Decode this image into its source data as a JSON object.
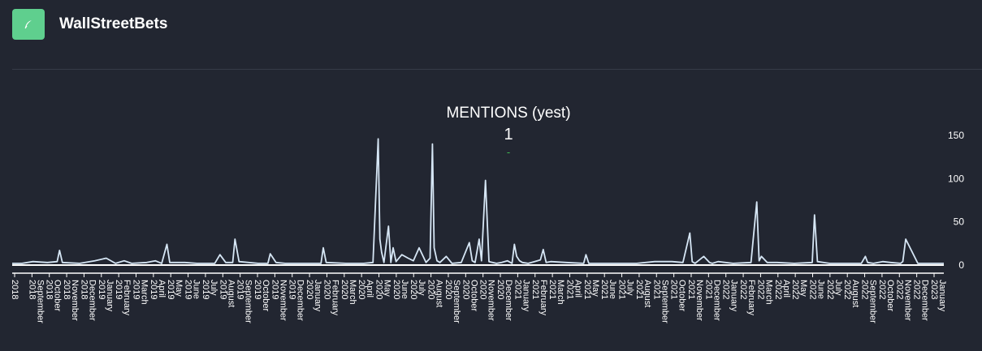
{
  "header": {
    "title": "WallStreetBets",
    "logo_icon": "feather-icon"
  },
  "indicator": {
    "title": "MENTIONS (yest)",
    "value": "1",
    "delta": "-"
  },
  "colors": {
    "background": "#222631",
    "line": "#d6e6f5",
    "logo_bg": "#5fcf8e",
    "delta": "#3fb950"
  },
  "chart_data": {
    "type": "line",
    "ylim": [
      0,
      160
    ],
    "y_ticks": [
      0,
      50,
      100,
      150
    ],
    "x_range": [
      "2018-08-15",
      "2023-01-15"
    ],
    "x_ticks": [
      "2018",
      "2018 September",
      "2018 October",
      "2018 November",
      "2018 December",
      "2019 January",
      "2019 February",
      "2019 March",
      "2019 April",
      "2019 May",
      "2019 June",
      "2019 July",
      "2019 August",
      "2019 September",
      "2019 October",
      "2019 November",
      "2019 December",
      "2020 January",
      "2020 February",
      "2020 March",
      "2020 April",
      "2020 May",
      "2020 June",
      "2020 July",
      "2020 August",
      "2020 September",
      "2020 October",
      "2020 November",
      "2020 December",
      "2021 January",
      "2021 February",
      "2021 March",
      "2021 April",
      "2021 May",
      "2021 June",
      "2021 July",
      "2021 August",
      "2021 September",
      "2021 October",
      "2021 November",
      "2021 December",
      "2022 January",
      "2022 February",
      "2022 March",
      "2022 April",
      "2022 May",
      "2022 June",
      "2022 July",
      "2022 August",
      "2022 September",
      "2022 October",
      "2022 November",
      "2022 December",
      "2023 January"
    ],
    "series": [
      {
        "x": [
          "2018-08-15",
          "2018-09-01",
          "2018-09-20",
          "2018-10-15",
          "2018-11-01",
          "2018-11-05",
          "2018-11-10",
          "2018-12-10",
          "2019-01-05",
          "2019-01-25",
          "2019-02-10",
          "2019-02-25",
          "2019-03-10",
          "2019-04-05",
          "2019-04-20",
          "2019-05-01",
          "2019-05-10",
          "2019-05-15",
          "2019-06-10",
          "2019-07-01",
          "2019-08-01",
          "2019-08-10",
          "2019-08-20",
          "2019-09-01",
          "2019-09-05",
          "2019-09-12",
          "2019-10-15",
          "2019-11-01",
          "2019-11-05",
          "2019-11-15",
          "2019-12-01",
          "2020-01-01",
          "2020-02-01",
          "2020-02-05",
          "2020-02-10",
          "2020-03-15",
          "2020-04-15",
          "2020-05-01",
          "2020-05-10",
          "2020-05-13",
          "2020-05-16",
          "2020-05-20",
          "2020-05-28",
          "2020-06-01",
          "2020-06-05",
          "2020-06-10",
          "2020-06-20",
          "2020-07-01",
          "2020-07-10",
          "2020-07-20",
          "2020-08-01",
          "2020-08-08",
          "2020-08-12",
          "2020-08-15",
          "2020-08-20",
          "2020-08-25",
          "2020-09-05",
          "2020-09-15",
          "2020-10-01",
          "2020-10-15",
          "2020-10-20",
          "2020-10-25",
          "2020-11-01",
          "2020-11-05",
          "2020-11-12",
          "2020-11-18",
          "2020-12-01",
          "2020-12-10",
          "2020-12-20",
          "2020-12-28",
          "2021-01-01",
          "2021-01-05",
          "2021-01-10",
          "2021-01-15",
          "2021-01-25",
          "2021-02-05",
          "2021-02-15",
          "2021-02-20",
          "2021-02-25",
          "2021-03-05",
          "2021-04-01",
          "2021-05-01",
          "2021-05-05",
          "2021-05-10",
          "2021-06-01",
          "2021-07-01",
          "2021-08-01",
          "2021-09-01",
          "2021-10-01",
          "2021-10-20",
          "2021-11-01",
          "2021-11-05",
          "2021-11-10",
          "2021-11-25",
          "2021-12-05",
          "2021-12-10",
          "2021-12-20",
          "2022-01-15",
          "2022-02-15",
          "2022-02-25",
          "2022-03-01",
          "2022-03-05",
          "2022-03-15",
          "2022-04-01",
          "2022-05-01",
          "2022-06-01",
          "2022-06-05",
          "2022-06-10",
          "2022-07-01",
          "2022-08-01",
          "2022-08-25",
          "2022-09-01",
          "2022-09-05",
          "2022-09-15",
          "2022-10-01",
          "2022-10-15",
          "2022-11-01",
          "2022-11-05",
          "2022-11-10",
          "2022-12-01",
          "2022-12-15",
          "2023-01-15"
        ],
        "y": [
          2,
          2,
          4,
          3,
          4,
          17,
          3,
          2,
          5,
          8,
          2,
          5,
          2,
          3,
          5,
          2,
          24,
          3,
          3,
          2,
          2,
          12,
          3,
          3,
          30,
          4,
          2,
          2,
          13,
          3,
          2,
          2,
          2,
          20,
          3,
          2,
          2,
          3,
          146,
          30,
          15,
          3,
          45,
          3,
          20,
          4,
          12,
          8,
          5,
          20,
          3,
          8,
          140,
          20,
          5,
          3,
          10,
          2,
          3,
          26,
          5,
          3,
          30,
          5,
          98,
          4,
          2,
          3,
          5,
          2,
          24,
          10,
          5,
          3,
          2,
          4,
          6,
          18,
          3,
          4,
          3,
          2,
          12,
          2,
          2,
          2,
          2,
          4,
          4,
          3,
          37,
          4,
          2,
          10,
          3,
          2,
          4,
          2,
          3,
          73,
          5,
          10,
          3,
          3,
          2,
          3,
          58,
          4,
          2,
          2,
          2,
          10,
          3,
          2,
          4,
          3,
          2,
          4,
          30,
          2,
          2,
          2
        ]
      }
    ]
  }
}
